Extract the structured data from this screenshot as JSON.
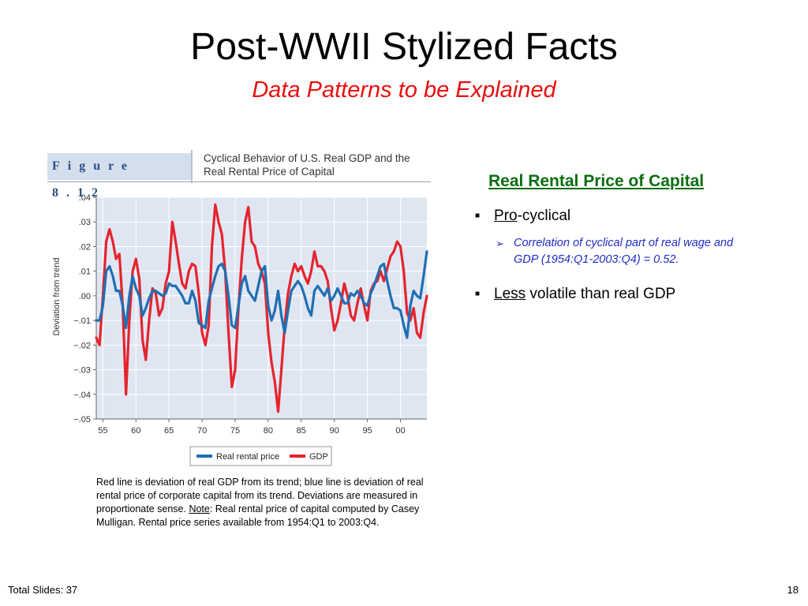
{
  "slide": {
    "title": "Post-WWII Stylized Facts",
    "subtitle": "Data Patterns to be Explained",
    "total_slides": "Total Slides: 37",
    "page_number": "18"
  },
  "figure": {
    "label": "Figure 8.12",
    "caption": "Cyclical Behavior of U.S. Real GDP and the Real Rental Price of Capital"
  },
  "notes": {
    "part1": "Red line is deviation of real GDP from its trend; blue line is deviation of real rental price of corporate capital from its trend. Deviations are measured in proportionate sense. ",
    "note_word": "Note",
    "part2": ": Real rental price of capital computed by Casey Mulligan.  Rental price series available from 1954:Q1 to 2003:Q4."
  },
  "right": {
    "heading": "Real Rental Price of Capital",
    "bullet1_ul": "Pro",
    "bullet1_rest": "-cyclical",
    "sub1": "Correlation of cyclical part of real wage and GDP  (1954:Q1-2003:Q4) = 0.52.",
    "bullet2_ul": "Less",
    "bullet2_rest": " volatile than real GDP"
  },
  "colors": {
    "gdp": "#e5242e",
    "rental": "#1f6fb3",
    "plot_bg": "#dfe6f2",
    "heading": "#0b6e10",
    "subtitle": "#e8100f"
  },
  "chart_data": {
    "type": "line",
    "xlabel": "",
    "ylabel": "Deviation from trend",
    "xlim": [
      1954,
      2004
    ],
    "ylim": [
      -0.05,
      0.04
    ],
    "xticks": [
      1955,
      1960,
      1965,
      1970,
      1975,
      1980,
      1985,
      1990,
      1995,
      2000
    ],
    "xtick_labels": [
      "55",
      "60",
      "65",
      "70",
      "75",
      "80",
      "85",
      "90",
      "95",
      "00"
    ],
    "yticks": [
      0.04,
      0.03,
      0.02,
      0.01,
      0.0,
      -0.01,
      -0.02,
      -0.03,
      -0.04,
      -0.05
    ],
    "ytick_labels": [
      ".04",
      ".03",
      ".02",
      ".01",
      ".00",
      "−.01",
      "−.02",
      "−.03",
      "−.04",
      "−.05"
    ],
    "grid": true,
    "legend": "bottom-center",
    "series": [
      {
        "name": "Real rental price",
        "color": "#1f6fb3",
        "x": [
          1954.0,
          1954.5,
          1955.0,
          1955.5,
          1956.0,
          1956.5,
          1957.0,
          1957.5,
          1958.0,
          1958.5,
          1959.0,
          1959.5,
          1960.0,
          1960.5,
          1961.0,
          1961.5,
          1962.0,
          1962.5,
          1963.0,
          1963.5,
          1964.0,
          1964.5,
          1965.0,
          1965.5,
          1966.0,
          1966.5,
          1967.0,
          1967.5,
          1968.0,
          1968.5,
          1969.0,
          1969.5,
          1970.0,
          1970.5,
          1971.0,
          1971.5,
          1972.0,
          1972.5,
          1973.0,
          1973.5,
          1974.0,
          1974.5,
          1975.0,
          1975.5,
          1976.0,
          1976.5,
          1977.0,
          1977.5,
          1978.0,
          1978.5,
          1979.0,
          1979.5,
          1980.0,
          1980.5,
          1981.0,
          1981.5,
          1982.0,
          1982.5,
          1983.0,
          1983.5,
          1984.0,
          1984.5,
          1985.0,
          1985.5,
          1986.0,
          1986.5,
          1987.0,
          1987.5,
          1988.0,
          1988.5,
          1989.0,
          1989.5,
          1990.0,
          1990.5,
          1991.0,
          1991.5,
          1992.0,
          1992.5,
          1993.0,
          1993.5,
          1994.0,
          1994.5,
          1995.0,
          1995.5,
          1996.0,
          1996.5,
          1997.0,
          1997.5,
          1998.0,
          1998.5,
          1999.0,
          1999.5,
          2000.0,
          2000.5,
          2001.0,
          2001.5,
          2002.0,
          2002.5,
          2003.0,
          2003.5,
          2004.0
        ],
        "y": [
          -0.01,
          -0.01,
          -0.004,
          0.01,
          0.012,
          0.008,
          0.002,
          0.002,
          -0.004,
          -0.013,
          0.0,
          0.008,
          0.003,
          0.0,
          -0.008,
          -0.005,
          -0.001,
          0.002,
          0.002,
          0.001,
          0.0,
          0.001,
          0.005,
          0.004,
          0.004,
          0.002,
          0.0,
          -0.003,
          -0.003,
          0.002,
          -0.002,
          -0.011,
          -0.012,
          -0.013,
          -0.002,
          0.003,
          0.008,
          0.012,
          0.013,
          0.01,
          0.0,
          -0.012,
          -0.013,
          -0.004,
          0.005,
          0.008,
          0.002,
          0.0,
          -0.002,
          0.004,
          0.01,
          0.012,
          -0.004,
          -0.01,
          -0.006,
          0.002,
          -0.008,
          -0.015,
          -0.006,
          0.002,
          0.004,
          0.006,
          0.004,
          0.0,
          -0.005,
          -0.008,
          0.002,
          0.004,
          0.002,
          0.0,
          0.003,
          -0.002,
          0.0,
          0.003,
          0.0,
          -0.003,
          -0.003,
          0.001,
          0.0,
          0.002,
          0.0,
          -0.003,
          -0.004,
          0.001,
          0.004,
          0.008,
          0.012,
          0.013,
          0.006,
          0.0,
          -0.005,
          -0.005,
          -0.006,
          -0.012,
          -0.017,
          -0.004,
          0.002,
          0.0,
          -0.001,
          0.008,
          0.018
        ]
      },
      {
        "name": "GDP",
        "color": "#e5242e",
        "x": [
          1954.0,
          1954.5,
          1955.0,
          1955.5,
          1956.0,
          1956.5,
          1957.0,
          1957.5,
          1958.0,
          1958.5,
          1959.0,
          1959.5,
          1960.0,
          1960.5,
          1961.0,
          1961.5,
          1962.0,
          1962.5,
          1963.0,
          1963.5,
          1964.0,
          1964.5,
          1965.0,
          1965.5,
          1966.0,
          1966.5,
          1967.0,
          1967.5,
          1968.0,
          1968.5,
          1969.0,
          1969.5,
          1970.0,
          1970.5,
          1971.0,
          1971.5,
          1972.0,
          1972.5,
          1973.0,
          1973.5,
          1974.0,
          1974.5,
          1975.0,
          1975.5,
          1976.0,
          1976.5,
          1977.0,
          1977.5,
          1978.0,
          1978.5,
          1979.0,
          1979.5,
          1980.0,
          1980.5,
          1981.0,
          1981.5,
          1982.0,
          1982.5,
          1983.0,
          1983.5,
          1984.0,
          1984.5,
          1985.0,
          1985.5,
          1986.0,
          1986.5,
          1987.0,
          1987.5,
          1988.0,
          1988.5,
          1989.0,
          1989.5,
          1990.0,
          1990.5,
          1991.0,
          1991.5,
          1992.0,
          1992.5,
          1993.0,
          1993.5,
          1994.0,
          1994.5,
          1995.0,
          1995.5,
          1996.0,
          1996.5,
          1997.0,
          1997.5,
          1998.0,
          1998.5,
          1999.0,
          1999.5,
          2000.0,
          2000.5,
          2001.0,
          2001.5,
          2002.0,
          2002.5,
          2003.0,
          2003.5,
          2004.0
        ],
        "y": [
          -0.017,
          -0.02,
          0.0,
          0.022,
          0.027,
          0.022,
          0.015,
          0.017,
          -0.004,
          -0.04,
          -0.01,
          0.01,
          0.015,
          0.007,
          -0.018,
          -0.026,
          -0.01,
          0.003,
          0.001,
          -0.008,
          -0.005,
          0.005,
          0.01,
          0.03,
          0.022,
          0.013,
          0.005,
          0.003,
          0.01,
          0.013,
          0.012,
          0.001,
          -0.015,
          -0.02,
          -0.012,
          0.02,
          0.037,
          0.03,
          0.025,
          0.01,
          -0.015,
          -0.037,
          -0.03,
          -0.005,
          0.015,
          0.03,
          0.036,
          0.022,
          0.02,
          0.013,
          0.01,
          0.005,
          -0.015,
          -0.027,
          -0.035,
          -0.047,
          -0.03,
          -0.012,
          0.001,
          0.008,
          0.013,
          0.01,
          0.012,
          0.008,
          0.005,
          0.01,
          0.018,
          0.012,
          0.012,
          0.01,
          0.006,
          -0.005,
          -0.014,
          -0.01,
          -0.003,
          0.005,
          0.0,
          -0.008,
          -0.01,
          -0.003,
          0.003,
          -0.004,
          -0.01,
          0.002,
          0.005,
          0.006,
          0.01,
          0.006,
          0.011,
          0.016,
          0.018,
          0.022,
          0.02,
          0.01,
          -0.007,
          -0.01,
          -0.005,
          -0.015,
          -0.017,
          -0.007,
          0.0
        ]
      }
    ]
  }
}
